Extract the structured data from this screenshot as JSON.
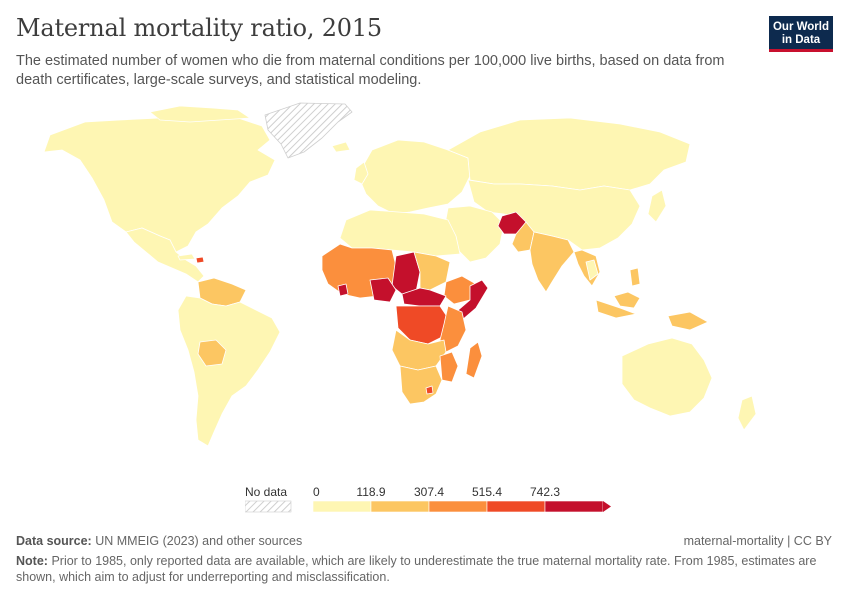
{
  "header": {
    "title": "Maternal mortality ratio, 2015",
    "subtitle": "The estimated number of women who die from maternal conditions per 100,000 live births, based on data from death certificates, large-scale surveys, and statistical modeling."
  },
  "logo": {
    "line1": "Our World",
    "line2": "in Data"
  },
  "colors": {
    "no_data_pattern": "#dcdcdc",
    "bin1": "#fef6b3",
    "bin2": "#fcc662",
    "bin3": "#fb8f3d",
    "bin4": "#ef4a26",
    "bin5": "#c4102c",
    "border": "#ffffff",
    "ocean": "#ffffff"
  },
  "legend": {
    "no_data_label": "No data",
    "ticks": [
      "0",
      "118.9",
      "307.4",
      "515.4",
      "742.3"
    ]
  },
  "footer": {
    "source_label": "Data source:",
    "source_text": "UN MMEIG (2023) and other sources",
    "slug": "maternal-mortality | CC BY",
    "note_label": "Note:",
    "note_text": "Prior to 1985, only reported data are available, which are likely to underestimate the true maternal mortality rate. From 1985, estimates are shown, which aim to adjust for underreporting and misclassification."
  }
}
